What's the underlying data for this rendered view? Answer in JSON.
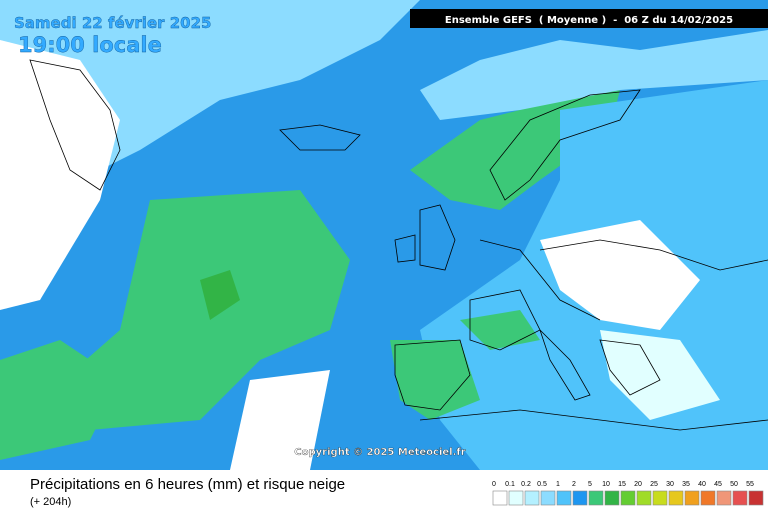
{
  "header": {
    "date": "Samedi 22 février 2025",
    "time": "19:00 locale",
    "model": "Ensemble GEFS  ( Moyenne )  -  06 Z du 14/02/2025"
  },
  "copyright": "Copyright © 2025 Meteociel.fr",
  "footer": {
    "title": "Précipitations en 6 heures (mm) et risque neige",
    "lead": "(+ 204h)"
  },
  "legend": {
    "labels": [
      "0",
      "0.1",
      "0.2",
      "0.5",
      "1",
      "2",
      "5",
      "10",
      "15",
      "20",
      "25",
      "30",
      "35",
      "40",
      "45",
      "50",
      "55"
    ],
    "colors": [
      "#ffffff",
      "#e1ffff",
      "#b4f0ff",
      "#8cdcff",
      "#50c3fa",
      "#1e96f0",
      "#3cc878",
      "#32b446",
      "#64cd32",
      "#a0dc28",
      "#c8dc1e",
      "#e6c81e",
      "#f0a01e",
      "#f07828",
      "#f09678",
      "#e65050",
      "#c83232"
    ]
  }
}
